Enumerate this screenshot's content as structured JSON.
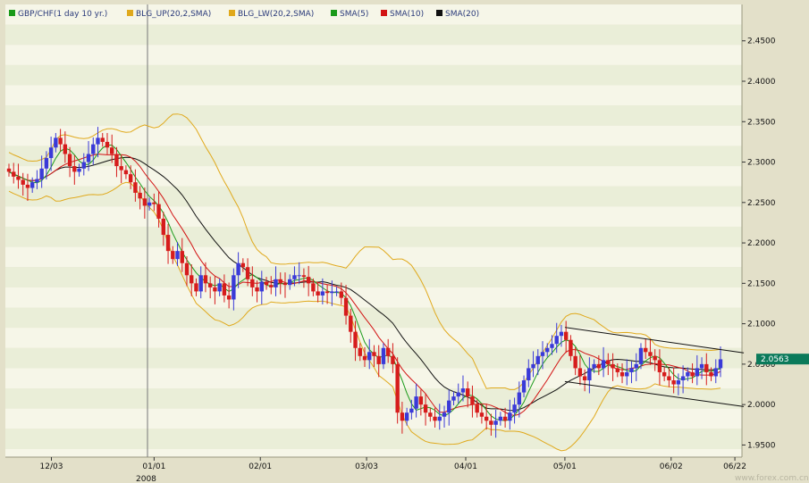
{
  "colors": {
    "band_light": "#f6f6e8",
    "band_dark": "#eaeed8",
    "frame_bg": "#e3e0c9",
    "up_candle": "#3a3ad8",
    "down_candle": "#d61c1c",
    "bollinger": "#e0a91c",
    "sma5": "#1a9a1a",
    "sma10": "#d21414",
    "sma20": "#111111",
    "channel": "#111111",
    "price_tag_bg": "#0a7a5a"
  },
  "legend": [
    {
      "label": "GBP/CHF(1 day  10 yr.)",
      "color": "#1a9a1a"
    },
    {
      "label": "BLG_UP(20,2,SMA)",
      "color": "#e0a91c"
    },
    {
      "label": "BLG_LW(20,2,SMA)",
      "color": "#e0a91c"
    },
    {
      "label": "SMA(5)",
      "color": "#1a9a1a"
    },
    {
      "label": "SMA(10)",
      "color": "#d21414"
    },
    {
      "label": "SMA(20)",
      "color": "#111111"
    }
  ],
  "watermark": "www.forex.com.cn",
  "chart_data": {
    "type": "candlestick",
    "instrument": "GBP/CHF",
    "ylim": [
      1.935,
      2.495
    ],
    "y_ticks": [
      "2.4500",
      "2.4000",
      "2.3500",
      "2.3000",
      "2.2500",
      "2.2000",
      "2.1500",
      "2.1000",
      "2.0500",
      "2.0000",
      "1.9500"
    ],
    "x_ticks": [
      "12/03",
      "01/01",
      "02/01",
      "03/03",
      "04/01",
      "05/01",
      "06/02",
      "06/22"
    ],
    "year_label": "2008",
    "last_price": "2.0563",
    "close_series": [
      2.288,
      2.282,
      2.278,
      2.272,
      2.268,
      2.275,
      2.279,
      2.292,
      2.305,
      2.318,
      2.33,
      2.322,
      2.31,
      2.295,
      2.288,
      2.292,
      2.3,
      2.31,
      2.322,
      2.33,
      2.325,
      2.318,
      2.31,
      2.295,
      2.29,
      2.285,
      2.275,
      2.262,
      2.255,
      2.246,
      2.25,
      2.248,
      2.23,
      2.21,
      2.19,
      2.18,
      2.19,
      2.175,
      2.16,
      2.15,
      2.14,
      2.16,
      2.15,
      2.145,
      2.14,
      2.15,
      2.135,
      2.13,
      2.16,
      2.175,
      2.17,
      2.155,
      2.145,
      2.14,
      2.152,
      2.148,
      2.145,
      2.155,
      2.15,
      2.148,
      2.155,
      2.16,
      2.16,
      2.158,
      2.15,
      2.14,
      2.135,
      2.14,
      2.138,
      2.14,
      2.14,
      2.132,
      2.11,
      2.09,
      2.07,
      2.06,
      2.055,
      2.065,
      2.06,
      2.05,
      2.07,
      2.06,
      2.05,
      1.99,
      1.98,
      1.99,
      1.995,
      2.01,
      2.0,
      1.99,
      1.985,
      1.98,
      1.985,
      1.99,
      2.005,
      2.01,
      2.015,
      2.02,
      2.01,
      2.0,
      1.99,
      1.985,
      1.98,
      1.975,
      1.98,
      1.985,
      1.98,
      1.99,
      2.0,
      2.015,
      2.03,
      2.045,
      2.05,
      2.06,
      2.065,
      2.07,
      2.075,
      2.085,
      2.09,
      2.08,
      2.06,
      2.045,
      2.035,
      2.03,
      2.045,
      2.05,
      2.045,
      2.055,
      2.05,
      2.045,
      2.04,
      2.035,
      2.04,
      2.045,
      2.05,
      2.07,
      2.065,
      2.06,
      2.055,
      2.04,
      2.035,
      2.03,
      2.025,
      2.03,
      2.035,
      2.04,
      2.035,
      2.045,
      2.05,
      2.04,
      2.035,
      2.045,
      2.056
    ],
    "channel_lines": [
      {
        "from": [
          "05/01",
          2.0955
        ],
        "to": [
          "06/22",
          2.064
        ]
      },
      {
        "from": [
          "05/01",
          2.0285
        ],
        "to": [
          "06/22",
          1.9975
        ]
      }
    ]
  }
}
